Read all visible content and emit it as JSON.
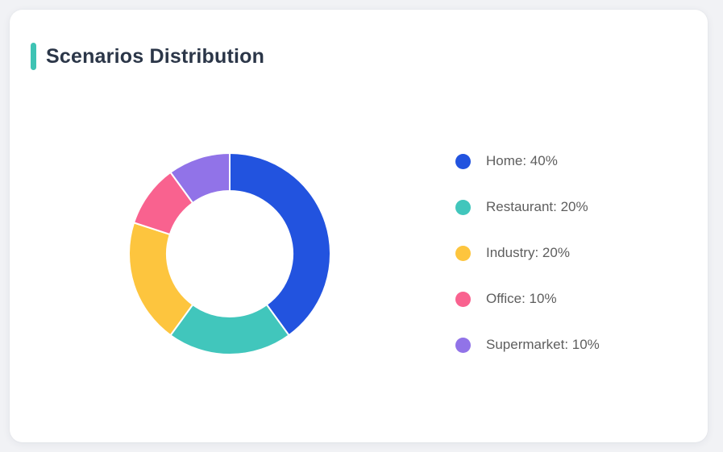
{
  "card": {
    "title": "Scenarios Distribution"
  },
  "theme": {
    "page_background": "#F1F2F5",
    "card_background": "#FFFFFF",
    "accent_bar_color": "#3EC3B4",
    "title_color": "#2B3648",
    "legend_text_color": "#5E5E5E",
    "segment_gap_color": "#FFFFFF"
  },
  "chart_data": {
    "type": "pie",
    "variant": "donut",
    "title": "Scenarios Distribution",
    "legend_position": "right",
    "start_angle_deg": 0,
    "direction": "clockwise",
    "outer_radius": 125,
    "inner_radius": 78,
    "series": [
      {
        "name": "Home",
        "value": 40,
        "color": "#2253DF",
        "label": "Home: 40%"
      },
      {
        "name": "Restaurant",
        "value": 20,
        "color": "#41C6BC",
        "label": "Restaurant: 20%"
      },
      {
        "name": "Industry",
        "value": 20,
        "color": "#FDC53E",
        "label": "Industry: 20%"
      },
      {
        "name": "Office",
        "value": 10,
        "color": "#F9628F",
        "label": "Office: 10%"
      },
      {
        "name": "Supermarket",
        "value": 10,
        "color": "#9173E8",
        "label": "Supermarket: 10%"
      }
    ]
  }
}
